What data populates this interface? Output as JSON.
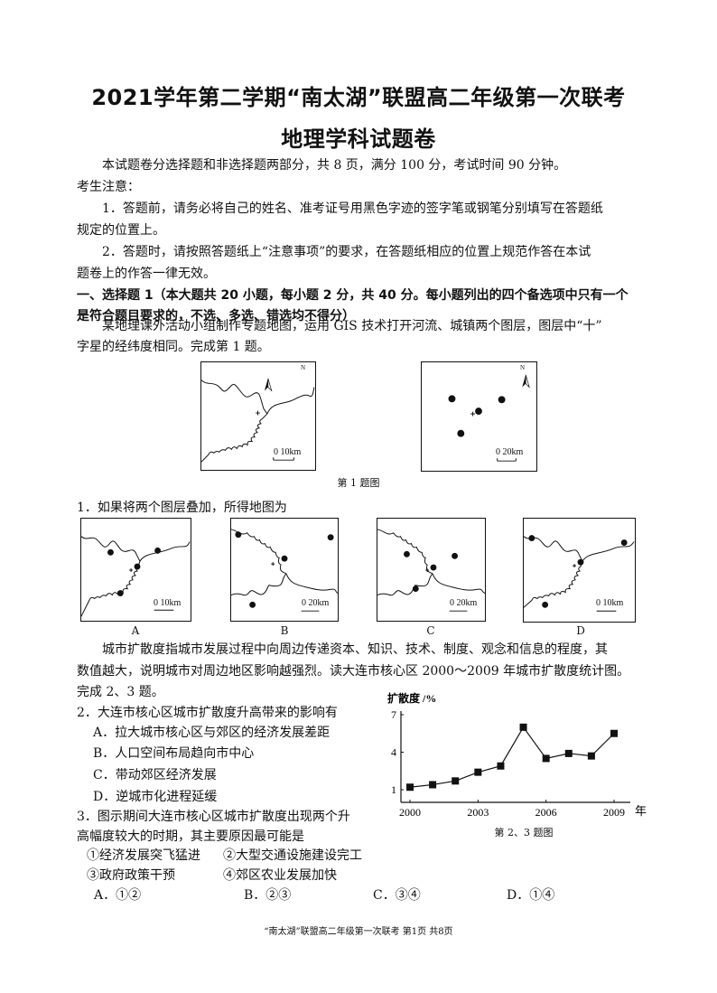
{
  "header": {
    "title_line1": "2021学年第二学期“南太湖”联盟高二年级第一次联考",
    "title_line2": "地理学科试题卷"
  },
  "intro": {
    "summary": "本试题卷分选择题和非选择题两部分，共 8 页，满分 100 分，考试时间 90 分钟。",
    "notice_label": "考生注意：",
    "notice_1a": "1．答题前，请务必将自己的姓名、准考证号用黑色字迹的签字笔或钢笔分别填写在答题纸",
    "notice_1b": "规定的位置上。",
    "notice_2a": "2．答题时，请按照答题纸上“注意事项”的要求，在答题纸相应的位置上规范作答在本试",
    "notice_2b": "题卷上的作答一律无效。"
  },
  "section1": {
    "heading_a": "一、选择题 1（本大题共 20 小题，每小题 2 分，共 40 分。每小题列出的四个备选项中只有一个",
    "heading_b": "是符合题目要求的，不选、多选、错选均不得分）",
    "stem1a": "某地理课外活动小组制作专题地图，运用 GIS 技术打开河流、城镇两个图层，图层中“十”",
    "stem1b": "字星的经纬度相同。完成第 1 题。",
    "fig1_caption": "第 1 题图",
    "map_river_scale": "0  10km",
    "map_town_scale": "0  20km",
    "north_label": "N",
    "q1": "1．如果将两个图层叠加，所得地图为",
    "q1_options": [
      {
        "label": "A",
        "scale": "0  10km"
      },
      {
        "label": "B",
        "scale": "0 20km"
      },
      {
        "label": "C",
        "scale": "0 20km"
      },
      {
        "label": "D",
        "scale": "0  10km"
      }
    ],
    "stem2a": "城市扩散度指城市发展过程中向周边传递资本、知识、技术、制度、观念和信息的程度，其",
    "stem2b": "数值越大，说明城市对周边地区影响越强烈。读大连市核心区 2000～2009 年城市扩散度统计图。",
    "stem2c": "完成 2、3 题。",
    "q2": "2．大连市核心区城市扩散度升高带来的影响有",
    "q2_options": [
      "A．拉大城市核心区与郊区的经济发展差距",
      "B．人口空间布局趋向市中心",
      "C．带动郊区经济发展",
      "D．逆城市化进程延缓"
    ],
    "q3a": "3．图示期间大连市核心区城市扩散度出现两个升",
    "q3b": "高幅度较大的时期，其主要原因最可能是",
    "q3_items": [
      "①经济发展突飞猛进",
      "②大型交通设施建设完工",
      "③政府政策干预",
      "④郊区农业发展加快"
    ],
    "q3_options": [
      "A．①②",
      "B．②③",
      "C．③④",
      "D．①④"
    ],
    "fig2_caption": "第 2、3 题图"
  },
  "chart_data": {
    "type": "line",
    "ylabel": "扩散度 /%",
    "xlabel": "年",
    "x": [
      2000,
      2001,
      2002,
      2003,
      2004,
      2005,
      2006,
      2007,
      2008,
      2009
    ],
    "values": [
      1.2,
      1.4,
      1.7,
      2.4,
      2.9,
      6.0,
      3.5,
      3.9,
      3.7,
      5.5
    ],
    "x_ticks": [
      "2000",
      "2003",
      "2006",
      "2009"
    ],
    "y_ticks": [
      "1",
      "4",
      "7"
    ],
    "ylim": [
      0.5,
      7
    ],
    "xlim": [
      2000,
      2009
    ],
    "grid": false,
    "marker": "square"
  },
  "footer": {
    "text": "“南太湖”联盟高二年级第一次联考   第1页   共8页"
  }
}
